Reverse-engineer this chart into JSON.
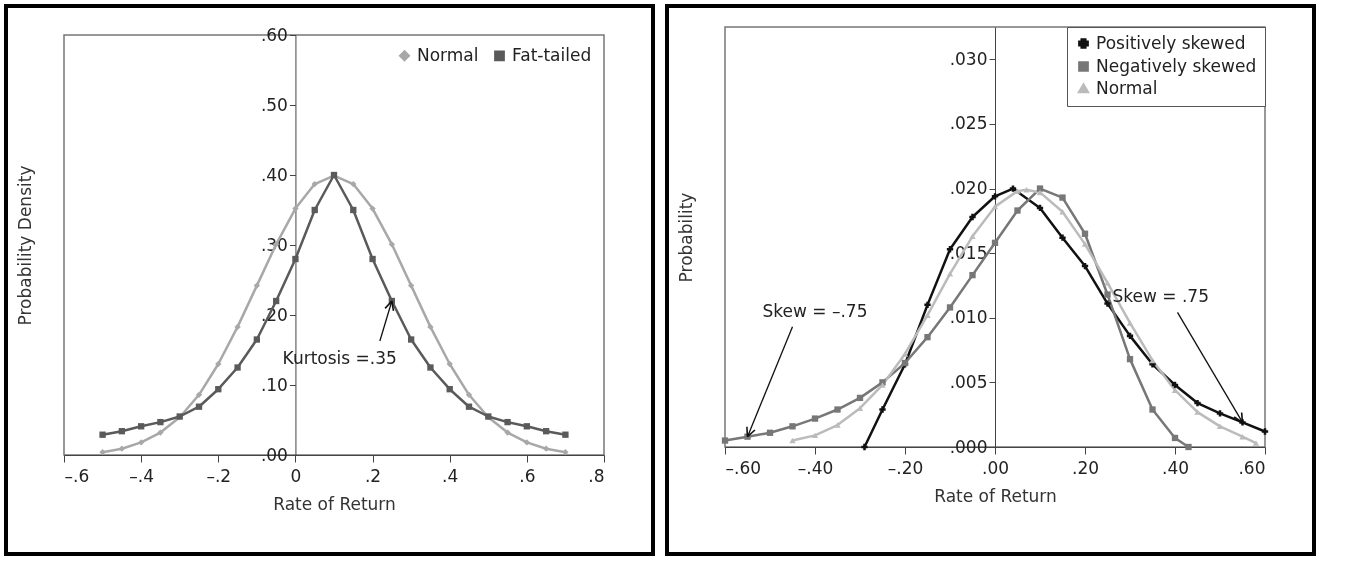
{
  "chart_data": [
    {
      "type": "line",
      "xlabel": "Rate of Return",
      "ylabel": "Probability Density",
      "x": [
        -0.5,
        -0.45,
        -0.4,
        -0.35,
        -0.3,
        -0.25,
        -0.2,
        -0.15,
        -0.1,
        -0.05,
        0,
        0.05,
        0.1,
        0.15,
        0.2,
        0.25,
        0.3,
        0.35,
        0.4,
        0.45,
        0.5,
        0.55,
        0.6,
        0.65,
        0.7
      ],
      "series": [
        {
          "name": "Normal",
          "color": "#a8a8a8",
          "marker": "diamond",
          "values": [
            0.004,
            0.009,
            0.018,
            0.032,
            0.054,
            0.086,
            0.13,
            0.183,
            0.242,
            0.301,
            0.352,
            0.387,
            0.399,
            0.387,
            0.352,
            0.301,
            0.242,
            0.183,
            0.13,
            0.086,
            0.054,
            0.032,
            0.018,
            0.009,
            0.004
          ]
        },
        {
          "name": "Fat-tailed",
          "color": "#5a5a5a",
          "marker": "square",
          "values": [
            0.029,
            0.034,
            0.041,
            0.047,
            0.055,
            0.069,
            0.094,
            0.125,
            0.165,
            0.22,
            0.28,
            0.35,
            0.4,
            0.35,
            0.28,
            0.22,
            0.165,
            0.125,
            0.094,
            0.069,
            0.055,
            0.047,
            0.041,
            0.034,
            0.029
          ]
        }
      ],
      "xlim": [
        -0.6,
        0.8
      ],
      "xticks": [
        {
          "value": -0.6,
          "label": "–.6"
        },
        {
          "value": -0.4,
          "label": "–.4"
        },
        {
          "value": -0.2,
          "label": "–.2"
        },
        0,
        {
          "value": 0.2,
          "label": ".2"
        },
        {
          "value": 0.4,
          "label": ".4"
        },
        {
          "value": 0.6,
          "label": ".6"
        },
        {
          "value": 0.8,
          "label": ".8"
        }
      ],
      "ylim": [
        0,
        0.6
      ],
      "yticks": [
        {
          "value": 0,
          "label": ".00"
        },
        {
          "value": 0.1,
          "label": ".10"
        },
        {
          "value": 0.2,
          "label": ".20"
        },
        {
          "value": 0.3,
          "label": ".30"
        },
        {
          "value": 0.4,
          "label": ".40"
        },
        {
          "value": 0.5,
          "label": ".50"
        },
        {
          "value": 0.6,
          "label": ".60"
        }
      ],
      "annotations": [
        {
          "text": "Kurtosis =.35",
          "x": 0.25,
          "y": 0.22
        }
      ],
      "legend": "top right",
      "grid": false,
      "line_style": "solid"
    },
    {
      "type": "line",
      "xlabel": "Rate of Return",
      "ylabel": "Probability",
      "series": [
        {
          "name": "Positively skewed",
          "color": "#111111",
          "marker": "cross",
          "x": [
            -0.29,
            -0.25,
            -0.2,
            -0.15,
            -0.1,
            -0.05,
            0,
            0.04,
            0.1,
            0.15,
            0.2,
            0.25,
            0.3,
            0.35,
            0.4,
            0.45,
            0.5,
            0.55,
            0.6
          ],
          "values": [
            0.0,
            0.0029,
            0.0064,
            0.011,
            0.0153,
            0.0178,
            0.0194,
            0.02,
            0.0185,
            0.0162,
            0.014,
            0.0111,
            0.0086,
            0.0064,
            0.0048,
            0.0034,
            0.0026,
            0.0019,
            0.0012
          ]
        },
        {
          "name": "Negatively skewed",
          "color": "#777777",
          "marker": "square",
          "x": [
            -0.6,
            -0.55,
            -0.5,
            -0.45,
            -0.4,
            -0.35,
            -0.3,
            -0.25,
            -0.2,
            -0.15,
            -0.1,
            -0.05,
            0,
            0.05,
            0.1,
            0.15,
            0.2,
            0.25,
            0.3,
            0.35,
            0.4,
            0.43
          ],
          "values": [
            0.0005,
            0.0008,
            0.0011,
            0.0016,
            0.0022,
            0.0029,
            0.0038,
            0.005,
            0.0065,
            0.0085,
            0.0108,
            0.0133,
            0.0158,
            0.0183,
            0.02,
            0.0193,
            0.0165,
            0.0118,
            0.0068,
            0.0029,
            0.0007,
            0.0
          ]
        },
        {
          "name": "Normal",
          "color": "#bbbbbb",
          "marker": "triangle",
          "x": [
            -0.45,
            -0.4,
            -0.35,
            -0.3,
            -0.25,
            -0.2,
            -0.15,
            -0.1,
            -0.05,
            0,
            0.05,
            0.07,
            0.1,
            0.15,
            0.2,
            0.25,
            0.3,
            0.35,
            0.4,
            0.45,
            0.5,
            0.55,
            0.58
          ],
          "values": [
            0.0005,
            0.0009,
            0.0017,
            0.003,
            0.0048,
            0.0072,
            0.0102,
            0.0134,
            0.0163,
            0.0186,
            0.0198,
            0.0199,
            0.0197,
            0.0182,
            0.0157,
            0.0127,
            0.0096,
            0.0067,
            0.0044,
            0.0027,
            0.0016,
            0.0008,
            0.0003
          ]
        }
      ],
      "xlim": [
        -0.6,
        0.6
      ],
      "xticks": [
        {
          "value": -0.6,
          "label": "–.60"
        },
        {
          "value": -0.4,
          "label": "–.40"
        },
        {
          "value": -0.2,
          "label": "–.20"
        },
        {
          "value": 0,
          "label": ".00"
        },
        {
          "value": 0.2,
          "label": ".20"
        },
        {
          "value": 0.4,
          "label": ".40"
        },
        {
          "value": 0.6,
          "label": ".60"
        }
      ],
      "ylim": [
        0,
        0.0325
      ],
      "yticks": [
        {
          "value": 0,
          "label": ".000"
        },
        {
          "value": 0.005,
          "label": ".005"
        },
        {
          "value": 0.01,
          "label": ".010"
        },
        {
          "value": 0.015,
          "label": ".015"
        },
        {
          "value": 0.02,
          "label": ".020"
        },
        {
          "value": 0.025,
          "label": ".025"
        },
        {
          "value": 0.03,
          "label": ".030"
        }
      ],
      "annotations": [
        {
          "text": "Skew = –.75",
          "x": -0.55,
          "y": 0.0008
        },
        {
          "text": "Skew = .75",
          "x": 0.55,
          "y": 0.0019
        }
      ],
      "legend": "top right",
      "grid": false,
      "line_style": "solid"
    }
  ]
}
